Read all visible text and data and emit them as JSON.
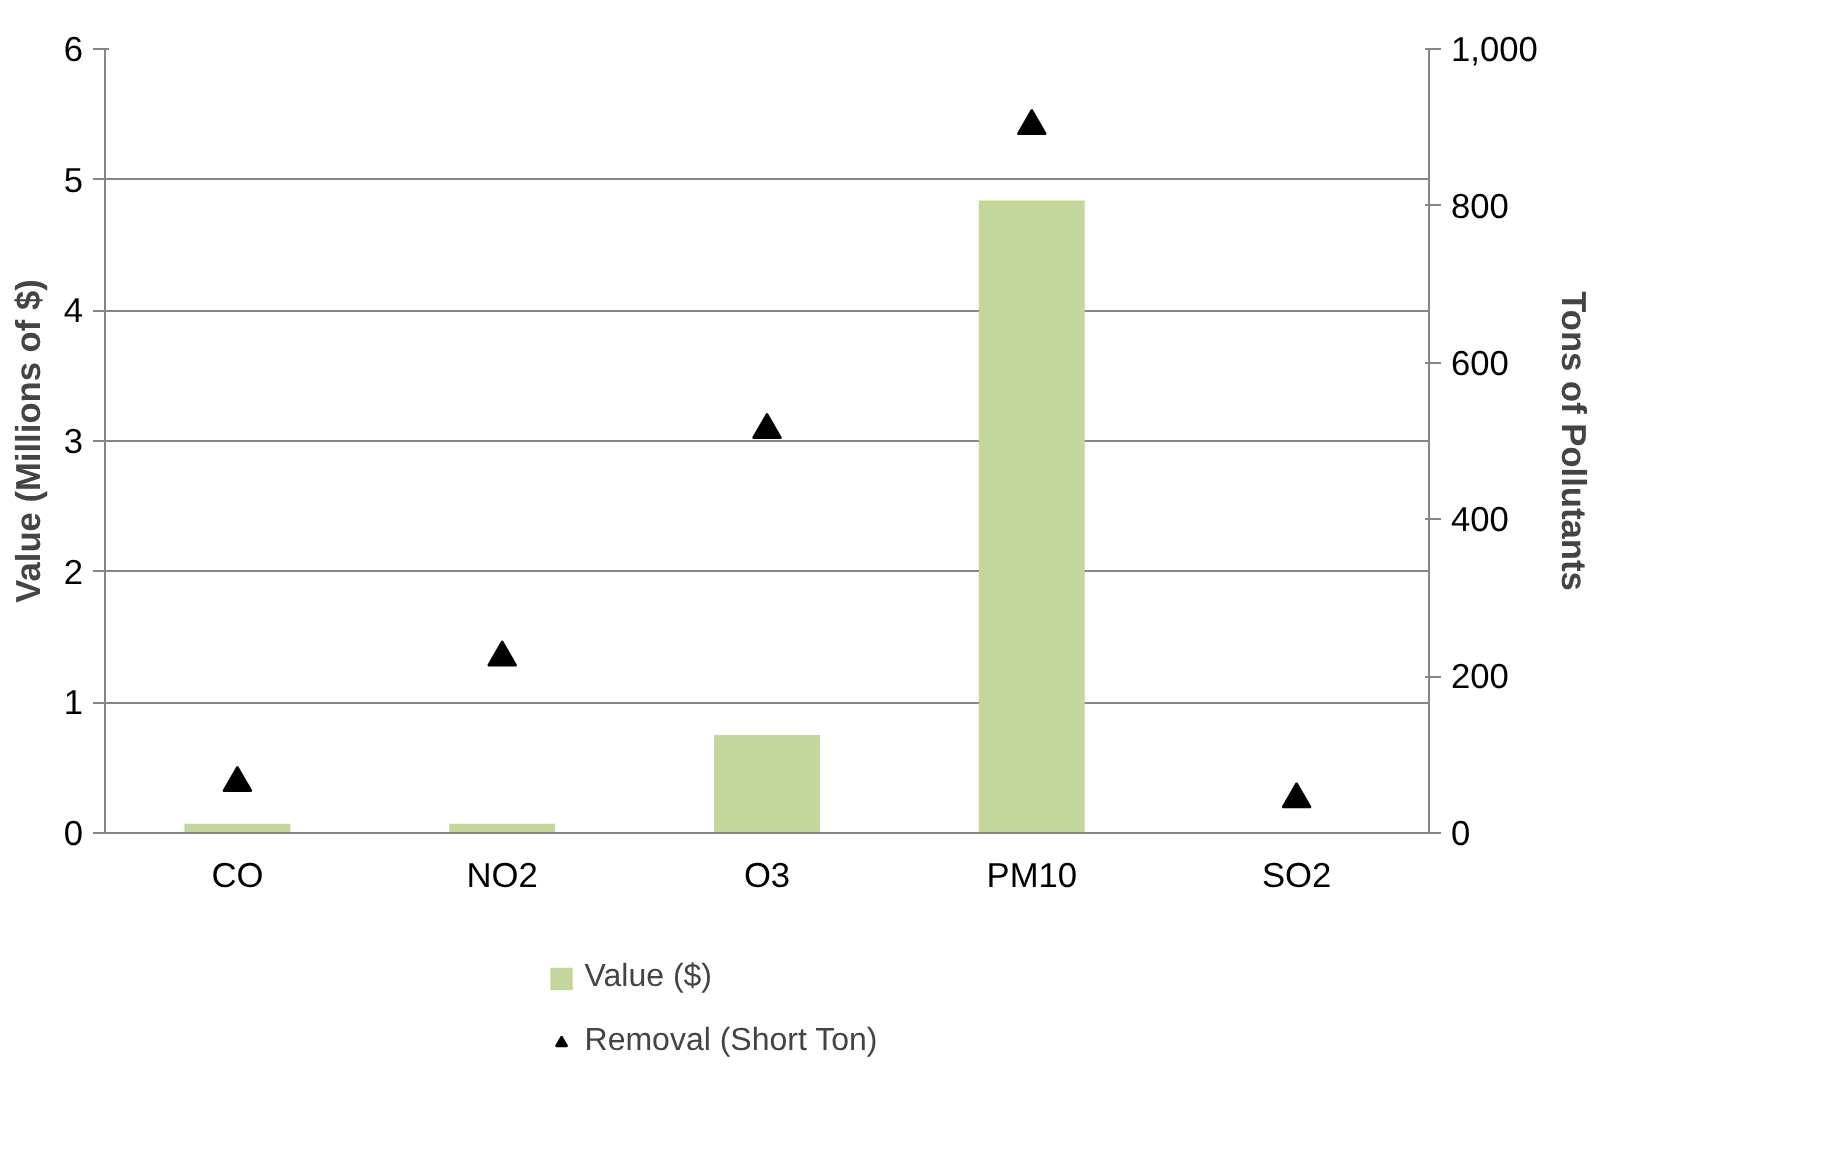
{
  "chart_data": {
    "type": "bar",
    "categories": [
      "CO",
      "NO2",
      "O3",
      "PM10",
      "SO2"
    ],
    "ylabel": "Value (Millions of $)",
    "y2label": "Tons of Pollutants",
    "ylim": [
      0,
      6
    ],
    "yticks": [
      0,
      1,
      2,
      3,
      4,
      5,
      6
    ],
    "y2lim": [
      0,
      1000
    ],
    "y2ticks": [
      0,
      200,
      400,
      600,
      800,
      {
        "value": 1000,
        "label": "1,000"
      }
    ],
    "grid": "y",
    "legend": "bottom",
    "series": [
      {
        "name": "Value ($)",
        "color": "#c4d79b",
        "values": [
          0.07,
          0.07,
          0.75,
          4.84,
          0
        ]
      },
      {
        "name": "Removal (Short Ton)",
        "type": "scatter",
        "marker": "triangle",
        "color": "#000000",
        "axis": "y2",
        "values": [
          64,
          224,
          514,
          902,
          43
        ]
      }
    ]
  }
}
